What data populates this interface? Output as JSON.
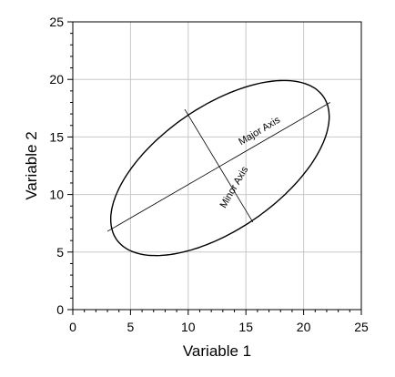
{
  "chart_data": {
    "type": "scatter",
    "xlabel": "Variable 1",
    "ylabel": "Variable 2",
    "xlim": [
      0,
      25
    ],
    "ylim": [
      0,
      25
    ],
    "x_ticks": [
      "0",
      "5",
      "10",
      "15",
      "20",
      "25"
    ],
    "y_ticks": [
      "0",
      "5",
      "10",
      "15",
      "20",
      "25"
    ],
    "grid": true,
    "ellipse": {
      "center": [
        12.75,
        12.3
      ],
      "angle_deg": 34.7,
      "semi_major": 10.9,
      "semi_minor": 5.35
    },
    "major_axis": {
      "x": [
        3.0,
        22.3
      ],
      "y": [
        6.8,
        18.0
      ]
    },
    "minor_axis": {
      "x": [
        9.7,
        15.6
      ],
      "y": [
        17.4,
        7.6
      ]
    },
    "annotations": [
      {
        "text": "Major Axis",
        "x": 16.3,
        "y": 15.3,
        "angle_deg": 31
      },
      {
        "text": "Minor Axis",
        "x": 14.2,
        "y": 10.5,
        "angle_deg": 60
      }
    ]
  }
}
